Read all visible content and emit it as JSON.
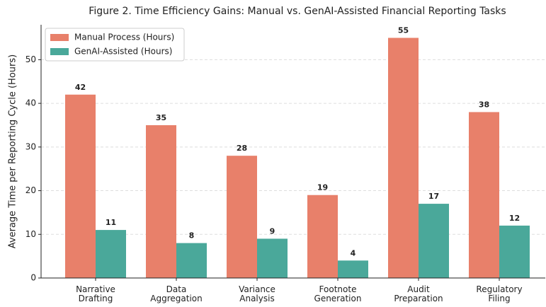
{
  "chart_data": {
    "type": "bar",
    "title": "Figure 2. Time Efficiency Gains: Manual vs. GenAI-Assisted Financial Reporting Tasks",
    "y_label": "Average Time per Reporting Cycle (Hours)",
    "categories": [
      "Narrative\nDrafting",
      "Data\nAggregation",
      "Variance\nAnalysis",
      "Footnote\nGeneration",
      "Audit\nPreparation",
      "Regulatory\nFiling"
    ],
    "series": [
      {
        "name": "Manual Process (Hours)",
        "color": "#e8806a",
        "values": [
          42,
          35,
          28,
          19,
          55,
          38
        ]
      },
      {
        "name": "GenAI-Assisted (Hours)",
        "color": "#4aa89a",
        "values": [
          11,
          8,
          9,
          4,
          17,
          12
        ]
      }
    ],
    "ylim": [
      0,
      58
    ],
    "yticks": [
      0,
      10,
      20,
      30,
      40,
      50
    ],
    "grid": true,
    "legend": "upper left"
  }
}
